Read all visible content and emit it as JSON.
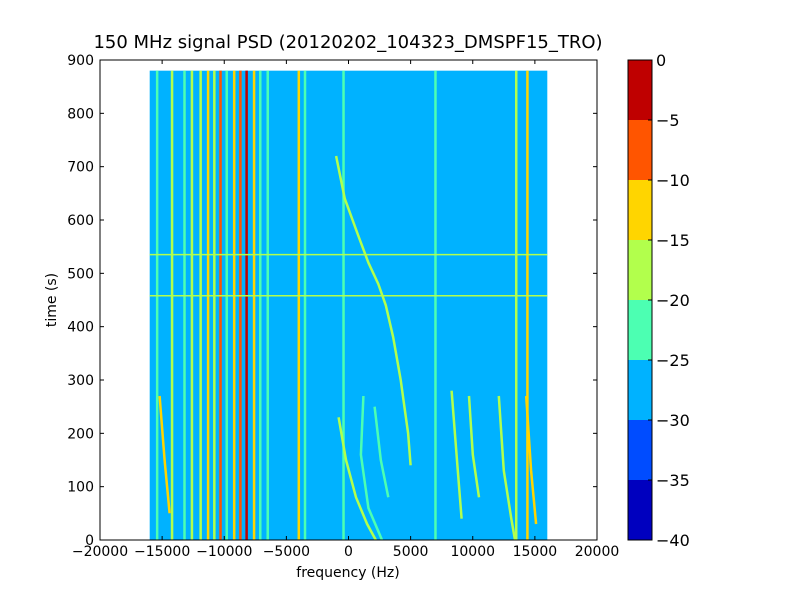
{
  "chart_data": {
    "type": "heatmap",
    "title": "150 MHz signal PSD (20120202_104323_DMSPF15_TRO)",
    "xlabel": "frequency (Hz)",
    "ylabel": "time (s)",
    "xlim": [
      -20000,
      20000
    ],
    "ylim": [
      0,
      900
    ],
    "xticks": [
      -20000,
      -15000,
      -10000,
      -5000,
      0,
      5000,
      10000,
      15000,
      20000
    ],
    "yticks": [
      0,
      100,
      200,
      300,
      400,
      500,
      600,
      700,
      800,
      900
    ],
    "data_extent": {
      "x": [
        -16000,
        16000
      ],
      "y": [
        0,
        880
      ]
    },
    "grid": false,
    "colorbar": {
      "min": -40,
      "max": 0,
      "ticks": [
        0,
        -5,
        -10,
        -15,
        -20,
        -25,
        -30,
        -35,
        -40
      ],
      "levels": [
        {
          "from": -40,
          "to": -35,
          "color": "#0000bf"
        },
        {
          "from": -35,
          "to": -30,
          "color": "#004cff"
        },
        {
          "from": -30,
          "to": -25,
          "color": "#00b2ff"
        },
        {
          "from": -25,
          "to": -20,
          "color": "#4cffb2"
        },
        {
          "from": -20,
          "to": -15,
          "color": "#b2ff4c"
        },
        {
          "from": -15,
          "to": -10,
          "color": "#ffd500"
        },
        {
          "from": -10,
          "to": -5,
          "color": "#ff5500"
        },
        {
          "from": -5,
          "to": 0,
          "color": "#bf0000"
        }
      ]
    },
    "background_level": -27.5,
    "vertical_lines": [
      {
        "freq": -15400,
        "level": -22
      },
      {
        "freq": -14200,
        "level": -18
      },
      {
        "freq": -13200,
        "level": -22
      },
      {
        "freq": -12600,
        "level": -18
      },
      {
        "freq": -11900,
        "level": -17
      },
      {
        "freq": -11300,
        "level": -12
      },
      {
        "freq": -10800,
        "level": -17
      },
      {
        "freq": -10300,
        "level": -8
      },
      {
        "freq": -9800,
        "level": -22
      },
      {
        "freq": -9200,
        "level": -12
      },
      {
        "freq": -8700,
        "level": -7
      },
      {
        "freq": -8200,
        "level": -3
      },
      {
        "freq": -7600,
        "level": -12
      },
      {
        "freq": -7100,
        "level": -20
      },
      {
        "freq": -6500,
        "level": -22
      },
      {
        "freq": -4000,
        "level": -12
      },
      {
        "freq": -3500,
        "level": -20
      },
      {
        "freq": -400,
        "level": -22
      },
      {
        "freq": 7000,
        "level": -22
      },
      {
        "freq": 13500,
        "level": -18
      },
      {
        "freq": 14400,
        "level": -12
      }
    ],
    "horizontal_lines": [
      {
        "time": 535,
        "x_from": -16000,
        "x_to": 16000,
        "level": -18
      },
      {
        "time": 458,
        "x_from": -16000,
        "x_to": 16000,
        "level": -18
      }
    ],
    "tracks": [
      {
        "level": -17,
        "points": [
          [
            -1000,
            720
          ],
          [
            -300,
            640
          ],
          [
            800,
            570
          ],
          [
            1600,
            520
          ],
          [
            2400,
            480
          ],
          [
            3000,
            440
          ],
          [
            3600,
            380
          ],
          [
            4200,
            300
          ],
          [
            4800,
            200
          ],
          [
            5000,
            140
          ]
        ]
      },
      {
        "level": -17,
        "points": [
          [
            -800,
            230
          ],
          [
            -200,
            150
          ],
          [
            600,
            80
          ],
          [
            1500,
            30
          ],
          [
            2200,
            0
          ]
        ]
      },
      {
        "level": -20,
        "points": [
          [
            1200,
            270
          ],
          [
            1000,
            160
          ],
          [
            1600,
            60
          ],
          [
            2700,
            0
          ]
        ]
      },
      {
        "level": -20,
        "points": [
          [
            2100,
            250
          ],
          [
            2600,
            150
          ],
          [
            3200,
            80
          ]
        ]
      },
      {
        "level": -17,
        "points": [
          [
            8300,
            280
          ],
          [
            8800,
            130
          ],
          [
            9100,
            40
          ]
        ]
      },
      {
        "level": -17,
        "points": [
          [
            9700,
            270
          ],
          [
            10000,
            160
          ],
          [
            10500,
            80
          ]
        ]
      },
      {
        "level": -15,
        "points": [
          [
            12100,
            270
          ],
          [
            12500,
            130
          ],
          [
            13100,
            40
          ],
          [
            13400,
            0
          ]
        ]
      },
      {
        "level": -12,
        "points": [
          [
            -15200,
            270
          ],
          [
            -14800,
            150
          ],
          [
            -14400,
            50
          ]
        ]
      },
      {
        "level": -12,
        "points": [
          [
            14300,
            270
          ],
          [
            14700,
            130
          ],
          [
            15100,
            30
          ]
        ]
      }
    ]
  }
}
